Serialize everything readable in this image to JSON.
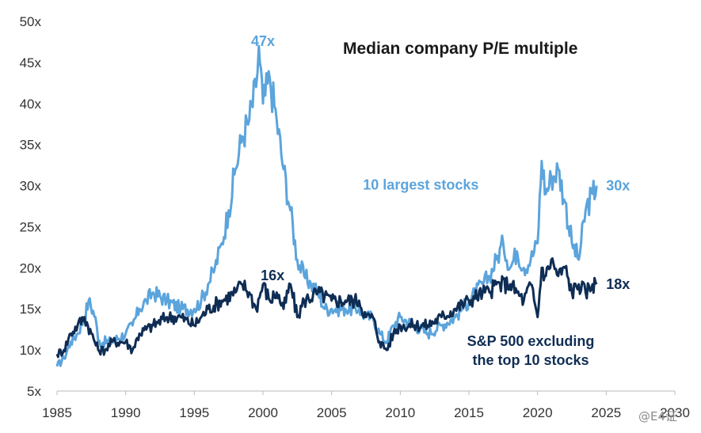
{
  "chart_data": {
    "type": "line",
    "title": "Median company P/E multiple",
    "xlim": [
      1985,
      2030
    ],
    "ylim": [
      5,
      50
    ],
    "x_ticks": [
      1985,
      1990,
      1995,
      2000,
      2005,
      2010,
      2015,
      2020,
      2025,
      2030
    ],
    "y_ticks": [
      5,
      10,
      15,
      20,
      25,
      30,
      35,
      40,
      45,
      50
    ],
    "y_tick_suffix": "x",
    "grid": false,
    "series": [
      {
        "name": "10 largest stocks",
        "color": "#5ba4dc",
        "end_label": "30x",
        "x": [
          1985,
          1985.5,
          1986,
          1986.5,
          1987,
          1987.3,
          1987.8,
          1988,
          1989,
          1990,
          1990.5,
          1991,
          1991.5,
          1992,
          1993,
          1994,
          1995,
          1995.5,
          1996,
          1996.5,
          1997,
          1997.5,
          1998,
          1998.5,
          1999,
          1999.5,
          1999.7,
          2000,
          2000.5,
          2001,
          2001.5,
          2002,
          2002.5,
          2003,
          2003.5,
          2004,
          2004.5,
          2005,
          2006,
          2007,
          2007.5,
          2008,
          2008.5,
          2009,
          2009.5,
          2010,
          2011,
          2012,
          2013,
          2014,
          2014.5,
          2015,
          2016,
          2016.5,
          2017,
          2017.5,
          2018,
          2018.5,
          2019,
          2019.5,
          2020,
          2020.3,
          2020.6,
          2021,
          2021.5,
          2022,
          2022.5,
          2023,
          2023.5,
          2024,
          2024.3
        ],
        "y": [
          8,
          9,
          11,
          12,
          14,
          16,
          14,
          11,
          11,
          12,
          13,
          15,
          16,
          17,
          16,
          15,
          15,
          16,
          18,
          20,
          23,
          27,
          32,
          36,
          38,
          42,
          47,
          40,
          43,
          38,
          32,
          27,
          21,
          19,
          18,
          17,
          15,
          15,
          15,
          15,
          14,
          14,
          12,
          11,
          13,
          14,
          13,
          12,
          13,
          14,
          15,
          16,
          18,
          19,
          21,
          23,
          20,
          22,
          20,
          21,
          23,
          33,
          29,
          31,
          32,
          28,
          23,
          21,
          27,
          29,
          30
        ]
      },
      {
        "name": "S&P 500 excluding the top 10 stocks",
        "color": "#0f2d54",
        "end_label": "18x",
        "x": [
          1985,
          1985.5,
          1986,
          1986.5,
          1987,
          1987.5,
          1988,
          1988.5,
          1989,
          1990,
          1990.5,
          1991,
          1992,
          1993,
          1994,
          1995,
          1995.5,
          1996,
          1997,
          1998,
          1998.5,
          1999,
          1999.5,
          2000,
          2000.5,
          2001,
          2001.5,
          2002,
          2002.5,
          2003,
          2004,
          2005,
          2006,
          2007,
          2007.5,
          2008,
          2008.5,
          2009,
          2009.5,
          2010,
          2011,
          2012,
          2013,
          2014,
          2015,
          2016,
          2016.5,
          2017,
          2018,
          2018.5,
          2019,
          2019.5,
          2020,
          2020.3,
          2020.6,
          2021,
          2021.5,
          2022,
          2022.5,
          2023,
          2023.5,
          2024,
          2024.3
        ],
        "y": [
          9.5,
          10,
          12,
          13,
          14,
          12,
          10,
          10,
          11,
          11,
          10,
          12,
          13,
          14,
          14,
          13,
          14,
          15,
          16,
          17,
          18,
          17,
          15,
          18,
          16,
          17,
          15,
          18,
          14,
          16,
          17,
          16,
          16,
          16,
          14,
          14,
          11,
          10,
          12,
          13,
          13,
          13,
          14,
          15,
          16,
          17,
          17,
          18,
          18,
          17,
          16,
          18,
          14,
          20,
          19,
          21,
          19,
          20,
          17,
          18,
          17,
          18,
          18
        ]
      }
    ],
    "annotations": [
      {
        "text": "47x",
        "x": 2000,
        "y": 47,
        "series": 0
      },
      {
        "text": "16x",
        "x": 2000.7,
        "y": 18.5,
        "series": 1
      },
      {
        "text": "10 largest stocks",
        "x": 2011.5,
        "y": 29.5,
        "series": 0
      },
      {
        "text": "S&P 500 excluding",
        "x": 2019.5,
        "y": 10.5,
        "series": 1
      },
      {
        "text": "the top 10 stocks",
        "x": 2019.5,
        "y": 8.2,
        "series": 1
      }
    ]
  },
  "watermark": "@E4证"
}
